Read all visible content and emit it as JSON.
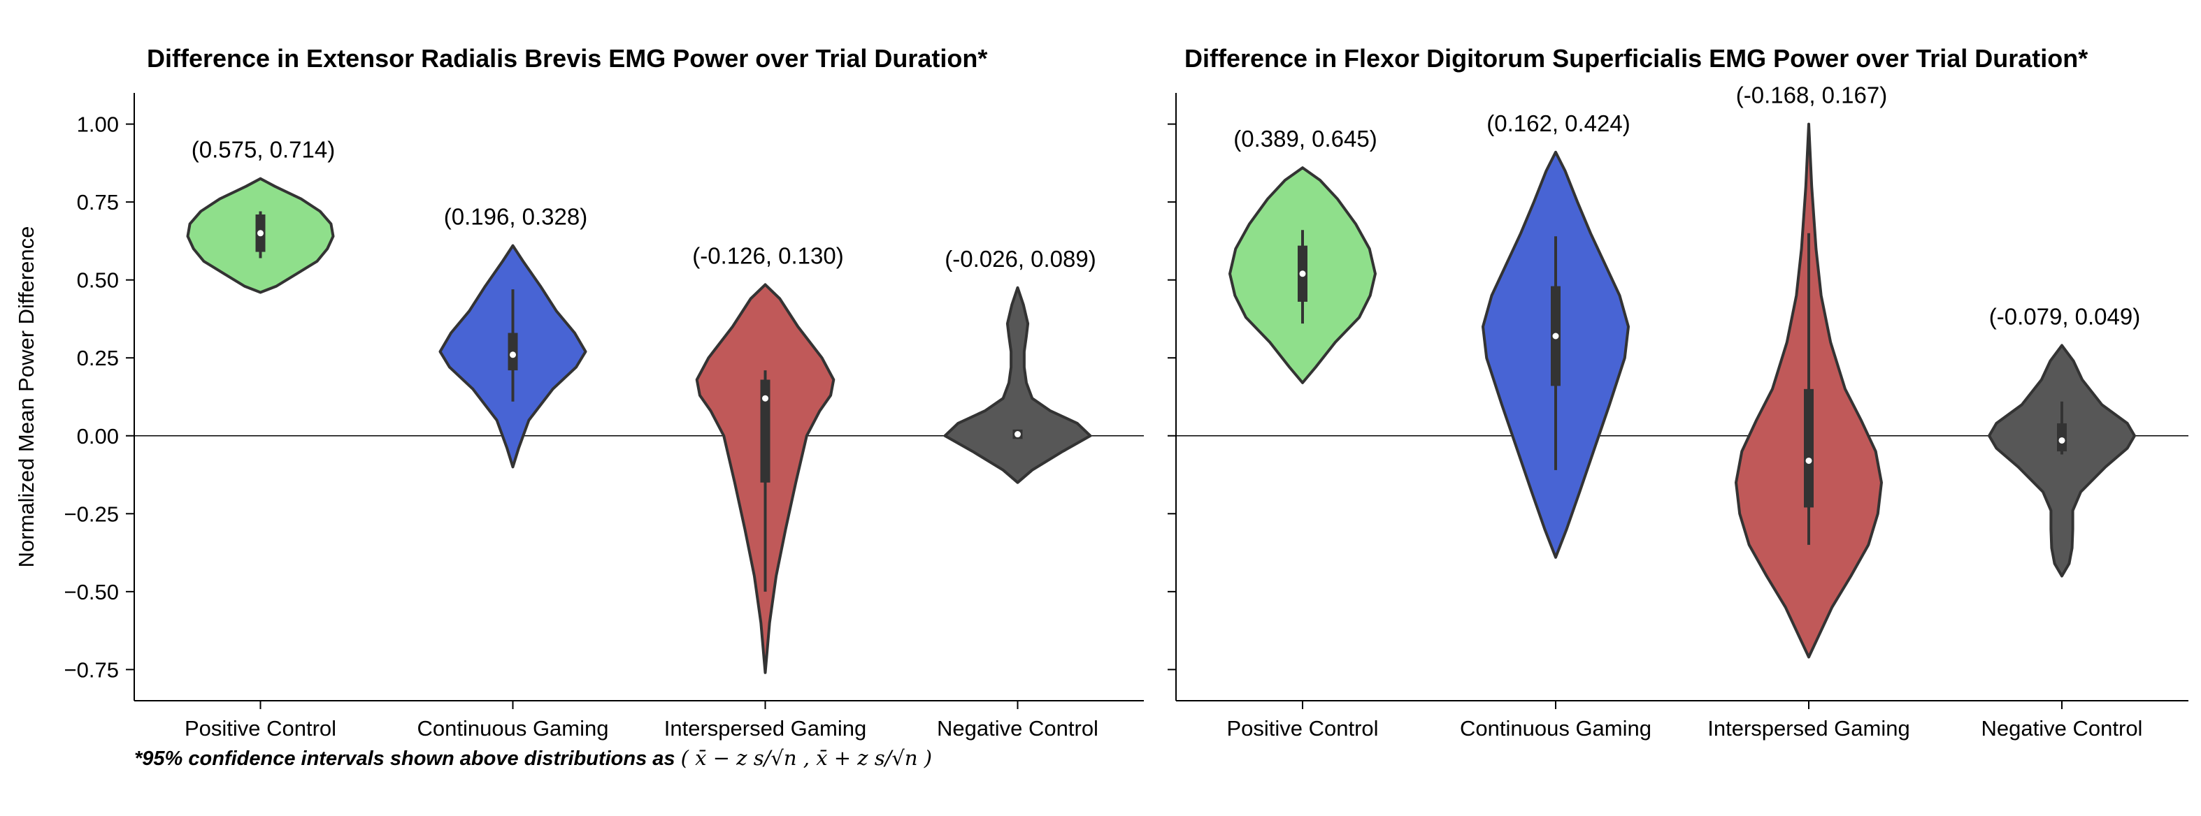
{
  "footnote": {
    "text": "*95% confidence intervals shown above distributions as",
    "formula": "( x̄ − z s/√n , x̄ + z s/√n )"
  },
  "chart_data": [
    {
      "type": "violin",
      "title": "Difference in Extensor Radialis Brevis EMG Power over Trial Duration*",
      "xlabel": "",
      "ylabel": "Normalized Mean Power Difference",
      "ylim": [
        -0.85,
        1.1
      ],
      "yticks": [
        -0.75,
        -0.5,
        -0.25,
        0.0,
        0.25,
        0.5,
        0.75,
        1.0
      ],
      "yticklabels": [
        "−0.75",
        "−0.50",
        "−0.25",
        "0.00",
        "0.25",
        "0.50",
        "0.75",
        "1.00"
      ],
      "reference_line_y": 0,
      "categories": [
        "Positive Control",
        "Continuous Gaming",
        "Interspersed Gaming",
        "Negative Control"
      ],
      "colors": [
        "#8fdf8b",
        "#4864d4",
        "#c05959",
        "#575757"
      ],
      "series": [
        {
          "ci_label": "(0.575, 0.714)",
          "min": 0.57,
          "q1": 0.59,
          "median": 0.65,
          "q3": 0.71,
          "max": 0.72,
          "shape": [
            [
              0.46,
              0
            ],
            [
              0.48,
              0.22
            ],
            [
              0.52,
              0.5
            ],
            [
              0.56,
              0.78
            ],
            [
              0.6,
              0.92
            ],
            [
              0.64,
              1.0
            ],
            [
              0.68,
              0.97
            ],
            [
              0.72,
              0.82
            ],
            [
              0.76,
              0.56
            ],
            [
              0.8,
              0.2
            ],
            [
              0.825,
              0
            ]
          ]
        },
        {
          "ci_label": "(0.196, 0.328)",
          "min": 0.11,
          "q1": 0.21,
          "median": 0.26,
          "q3": 0.33,
          "max": 0.47,
          "shape": [
            [
              -0.1,
              0
            ],
            [
              -0.04,
              0.08
            ],
            [
              0.05,
              0.22
            ],
            [
              0.15,
              0.55
            ],
            [
              0.22,
              0.87
            ],
            [
              0.27,
              1.0
            ],
            [
              0.33,
              0.85
            ],
            [
              0.4,
              0.6
            ],
            [
              0.48,
              0.38
            ],
            [
              0.56,
              0.14
            ],
            [
              0.61,
              0
            ]
          ]
        },
        {
          "ci_label": "(-0.126, 0.130)",
          "min": -0.5,
          "q1": -0.15,
          "median": 0.12,
          "q3": 0.18,
          "max": 0.21,
          "shape": [
            [
              -0.76,
              0
            ],
            [
              -0.6,
              0.06
            ],
            [
              -0.45,
              0.15
            ],
            [
              -0.3,
              0.28
            ],
            [
              -0.15,
              0.42
            ],
            [
              0.0,
              0.57
            ],
            [
              0.08,
              0.75
            ],
            [
              0.13,
              0.9
            ],
            [
              0.18,
              0.94
            ],
            [
              0.25,
              0.78
            ],
            [
              0.35,
              0.45
            ],
            [
              0.44,
              0.2
            ],
            [
              0.485,
              0
            ]
          ]
        },
        {
          "ci_label": "(-0.026, 0.089)",
          "min": -0.01,
          "q1": -0.01,
          "median": 0.005,
          "q3": 0.02,
          "max": 0.02,
          "shape": [
            [
              -0.15,
              0
            ],
            [
              -0.11,
              0.2
            ],
            [
              -0.05,
              0.62
            ],
            [
              0.0,
              1.0
            ],
            [
              0.04,
              0.82
            ],
            [
              0.08,
              0.45
            ],
            [
              0.12,
              0.2
            ],
            [
              0.17,
              0.12
            ],
            [
              0.22,
              0.09
            ],
            [
              0.27,
              0.09
            ],
            [
              0.32,
              0.12
            ],
            [
              0.36,
              0.14
            ],
            [
              0.42,
              0.08
            ],
            [
              0.475,
              0
            ]
          ]
        }
      ]
    },
    {
      "type": "violin",
      "title": "Difference in Flexor Digitorum Superficialis EMG Power over Trial Duration*",
      "xlabel": "",
      "ylabel": "",
      "ylim": [
        -0.85,
        1.1
      ],
      "yticks": [
        -0.75,
        -0.5,
        -0.25,
        0.0,
        0.25,
        0.5,
        0.75,
        1.0
      ],
      "yticklabels": [],
      "reference_line_y": 0,
      "categories": [
        "Positive Control",
        "Continuous Gaming",
        "Interspersed Gaming",
        "Negative Control"
      ],
      "colors": [
        "#8fdf8b",
        "#4864d4",
        "#c05959",
        "#575757"
      ],
      "series": [
        {
          "ci_label": "(0.389, 0.645)",
          "min": 0.36,
          "q1": 0.43,
          "median": 0.52,
          "q3": 0.61,
          "max": 0.66,
          "shape": [
            [
              0.17,
              0
            ],
            [
              0.22,
              0.18
            ],
            [
              0.3,
              0.45
            ],
            [
              0.38,
              0.78
            ],
            [
              0.45,
              0.93
            ],
            [
              0.52,
              1.0
            ],
            [
              0.6,
              0.92
            ],
            [
              0.68,
              0.73
            ],
            [
              0.76,
              0.48
            ],
            [
              0.82,
              0.24
            ],
            [
              0.86,
              0
            ]
          ]
        },
        {
          "ci_label": "(0.162, 0.424)",
          "min": -0.11,
          "q1": 0.16,
          "median": 0.32,
          "q3": 0.48,
          "max": 0.64,
          "shape": [
            [
              -0.39,
              0
            ],
            [
              -0.3,
              0.15
            ],
            [
              -0.18,
              0.33
            ],
            [
              -0.05,
              0.52
            ],
            [
              0.1,
              0.74
            ],
            [
              0.25,
              0.95
            ],
            [
              0.35,
              1.0
            ],
            [
              0.45,
              0.88
            ],
            [
              0.55,
              0.68
            ],
            [
              0.65,
              0.48
            ],
            [
              0.75,
              0.3
            ],
            [
              0.85,
              0.13
            ],
            [
              0.91,
              0
            ]
          ]
        },
        {
          "ci_label": "(-0.168, 0.167)",
          "min": -0.35,
          "q1": -0.23,
          "median": -0.08,
          "q3": 0.15,
          "max": 0.65,
          "shape": [
            [
              -0.71,
              0
            ],
            [
              -0.65,
              0.12
            ],
            [
              -0.55,
              0.32
            ],
            [
              -0.45,
              0.58
            ],
            [
              -0.35,
              0.82
            ],
            [
              -0.25,
              0.95
            ],
            [
              -0.15,
              1.0
            ],
            [
              -0.05,
              0.92
            ],
            [
              0.05,
              0.72
            ],
            [
              0.15,
              0.5
            ],
            [
              0.3,
              0.3
            ],
            [
              0.45,
              0.17
            ],
            [
              0.6,
              0.1
            ],
            [
              0.8,
              0.04
            ],
            [
              1.0,
              0
            ]
          ]
        },
        {
          "ci_label": "(-0.079, 0.049)",
          "min": -0.06,
          "q1": -0.05,
          "median": -0.015,
          "q3": 0.04,
          "max": 0.11,
          "shape": [
            [
              -0.45,
              0
            ],
            [
              -0.41,
              0.1
            ],
            [
              -0.36,
              0.14
            ],
            [
              -0.3,
              0.15
            ],
            [
              -0.24,
              0.15
            ],
            [
              -0.18,
              0.26
            ],
            [
              -0.1,
              0.6
            ],
            [
              -0.04,
              0.9
            ],
            [
              0.0,
              1.0
            ],
            [
              0.04,
              0.9
            ],
            [
              0.1,
              0.55
            ],
            [
              0.18,
              0.28
            ],
            [
              0.24,
              0.16
            ],
            [
              0.29,
              0
            ]
          ]
        }
      ]
    }
  ]
}
